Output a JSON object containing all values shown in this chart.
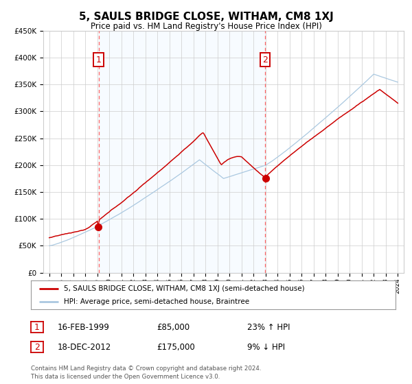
{
  "title": "5, SAULS BRIDGE CLOSE, WITHAM, CM8 1XJ",
  "subtitle": "Price paid vs. HM Land Registry's House Price Index (HPI)",
  "legend_line1": "5, SAULS BRIDGE CLOSE, WITHAM, CM8 1XJ (semi-detached house)",
  "legend_line2": "HPI: Average price, semi-detached house, Braintree",
  "annotation1_label": "1",
  "annotation1_date": "16-FEB-1999",
  "annotation1_price": "£85,000",
  "annotation1_hpi": "23% ↑ HPI",
  "annotation2_label": "2",
  "annotation2_date": "18-DEC-2012",
  "annotation2_price": "£175,000",
  "annotation2_hpi": "9% ↓ HPI",
  "footer": "Contains HM Land Registry data © Crown copyright and database right 2024.\nThis data is licensed under the Open Government Licence v3.0.",
  "sale1_year": 1999.12,
  "sale1_value": 85000,
  "sale2_year": 2012.96,
  "sale2_value": 175000,
  "ylim": [
    0,
    450000
  ],
  "xlim_start": 1994.5,
  "xlim_end": 2024.5,
  "shade_start": 1999.12,
  "shade_end": 2012.96,
  "hpi_color": "#aac8e0",
  "price_color": "#cc0000",
  "dot_color": "#cc0000",
  "vline_color": "#ff6666",
  "shade_color": "#ddeeff",
  "background_color": "#ffffff",
  "grid_color": "#cccccc",
  "box_color": "#cc0000"
}
